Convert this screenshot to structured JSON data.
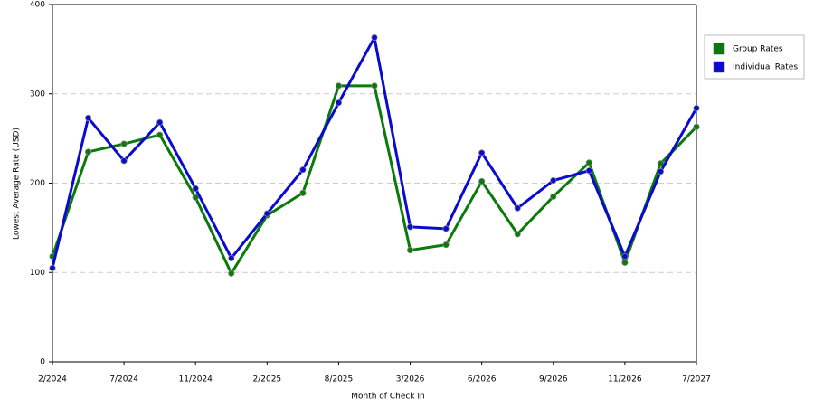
{
  "chart_data": {
    "type": "line",
    "x_label": "Month of Check In",
    "y_label": "Lowest Average Rate (USD)",
    "categories": [
      "2/2024",
      null,
      "7/2024",
      null,
      "11/2024",
      null,
      "2/2025",
      null,
      "8/2025",
      null,
      "3/2026",
      null,
      "6/2026",
      null,
      "9/2026",
      null,
      "11/2026",
      null,
      "7/2027"
    ],
    "series": [
      {
        "name": "Group Rates",
        "color": "#0a7a0a",
        "values": [
          118,
          235,
          244,
          254,
          184,
          99,
          164,
          189,
          309,
          309,
          125,
          131,
          202,
          143,
          185,
          223,
          111,
          222,
          263
        ]
      },
      {
        "name": "Individual Rates",
        "color": "#0a0ad0",
        "values": [
          105,
          273,
          225,
          268,
          194,
          116,
          166,
          215,
          290,
          363,
          151,
          149,
          234,
          172,
          203,
          214,
          118,
          213,
          284
        ]
      }
    ],
    "ylim": [
      0,
      400
    ],
    "yticks": [
      0,
      100,
      200,
      300,
      400
    ],
    "grid": true,
    "legend": "right"
  }
}
